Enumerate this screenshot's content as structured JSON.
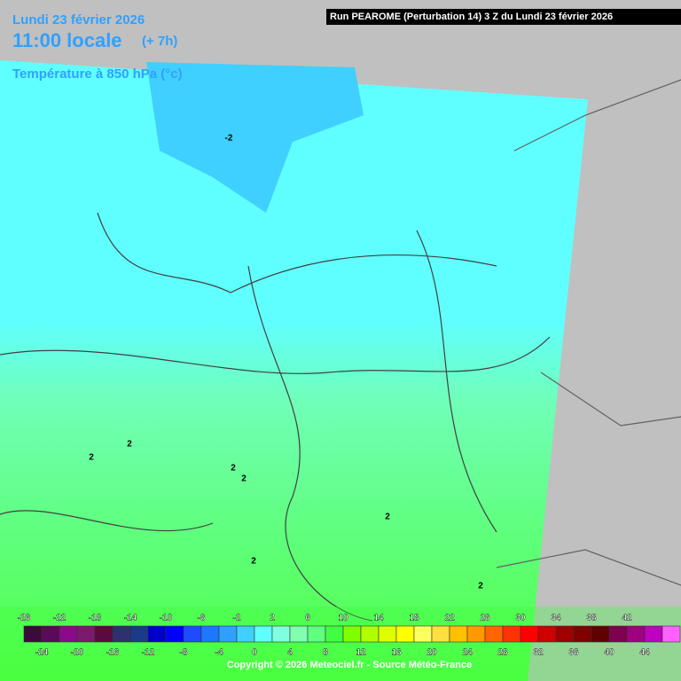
{
  "header": {
    "date": "Lundi 23 février 2026",
    "time": "11:00 locale",
    "offset": "(+ 7h)",
    "variable": "Température à 850 hPa (°c)",
    "run": "Run PEAROME (Perturbation 14) 3 Z du Lundi 23 février 2026"
  },
  "legend": {
    "ticks": [
      -26,
      -24,
      -22,
      -20,
      -18,
      -16,
      -14,
      -12,
      -10,
      -8,
      -6,
      -4,
      -2,
      0,
      2,
      4,
      6,
      8,
      10,
      12,
      14,
      16,
      18,
      20,
      22,
      24,
      26,
      28,
      30,
      32,
      34,
      36,
      38,
      40,
      42,
      44
    ],
    "colors": [
      "#3c0a3c",
      "#5a0a5a",
      "#8b0a8b",
      "#7a1a70",
      "#5a0a40",
      "#303070",
      "#1a3a8a",
      "#0000c8",
      "#0000ff",
      "#1e4bff",
      "#1e78ff",
      "#30a0ff",
      "#40d0ff",
      "#60ffff",
      "#80ffe0",
      "#80ffb0",
      "#60ff80",
      "#40ff40",
      "#80ff00",
      "#b0ff00",
      "#e0ff00",
      "#ffff00",
      "#ffff60",
      "#ffe040",
      "#ffc000",
      "#ff9900",
      "#ff6600",
      "#ff3300",
      "#ff0000",
      "#d00000",
      "#a00000",
      "#800000",
      "#600000",
      "#800050",
      "#a00080",
      "#c000c0",
      "#ff60ff"
    ]
  },
  "contour_labels": [
    "-2",
    "2",
    "2",
    "2",
    "2",
    "2",
    "2",
    "2"
  ],
  "copyright": "Copyright © 2026 Meteociel.fr - Source Météo-France"
}
